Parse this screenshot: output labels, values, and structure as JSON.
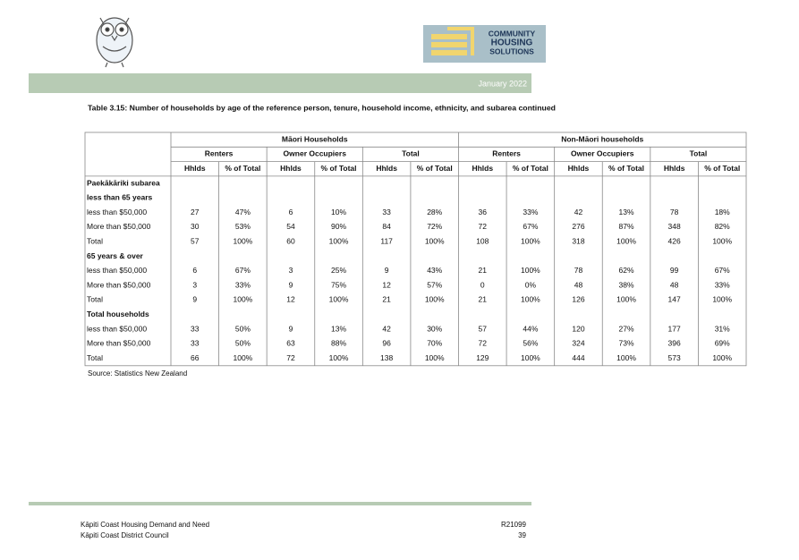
{
  "header": {
    "logo_text": [
      "COMMUNITY",
      "HOUSING",
      "SOLUTIONS"
    ],
    "date": "January 2022"
  },
  "table": {
    "title": "Table 3.15:  Number of households by age of the reference person, tenure, household income, ethnicity, and subarea continued",
    "group_headers": [
      "Māori Households",
      "Non-Māori households"
    ],
    "sub_headers": [
      "Renters",
      "Owner Occupiers",
      "Total",
      "Renters",
      "Owner Occupiers",
      "Total"
    ],
    "column_headers": [
      "Hhlds",
      "% of Total",
      "Hhlds",
      "% of Total",
      "Hhlds",
      "% of Total",
      "Hhlds",
      "% of Total",
      "Hhlds",
      "% of Total",
      "Hhlds",
      "% of Total"
    ],
    "rows": [
      [
        "Paekākāriki subarea"
      ],
      [
        "less than 65 years"
      ],
      [
        "less than $50,000",
        "27",
        "47%",
        "6",
        "10%",
        "33",
        "28%",
        "36",
        "33%",
        "42",
        "13%",
        "78",
        "18%"
      ],
      [
        "More than $50,000",
        "30",
        "53%",
        "54",
        "90%",
        "84",
        "72%",
        "72",
        "67%",
        "276",
        "87%",
        "348",
        "82%"
      ],
      [
        "Total",
        "57",
        "100%",
        "60",
        "100%",
        "117",
        "100%",
        "108",
        "100%",
        "318",
        "100%",
        "426",
        "100%"
      ],
      [
        "65 years & over"
      ],
      [
        "less than $50,000",
        "6",
        "67%",
        "3",
        "25%",
        "9",
        "43%",
        "21",
        "100%",
        "78",
        "62%",
        "99",
        "67%"
      ],
      [
        "More than $50,000",
        "3",
        "33%",
        "9",
        "75%",
        "12",
        "57%",
        "0",
        "0%",
        "48",
        "38%",
        "48",
        "33%"
      ],
      [
        "Total",
        "9",
        "100%",
        "12",
        "100%",
        "21",
        "100%",
        "21",
        "100%",
        "126",
        "100%",
        "147",
        "100%"
      ],
      [
        "Total households"
      ],
      [
        "less than $50,000",
        "33",
        "50%",
        "9",
        "13%",
        "42",
        "30%",
        "57",
        "44%",
        "120",
        "27%",
        "177",
        "31%"
      ],
      [
        "More than $50,000",
        "33",
        "50%",
        "63",
        "88%",
        "96",
        "70%",
        "72",
        "56%",
        "324",
        "73%",
        "396",
        "69%"
      ],
      [
        "Total",
        "66",
        "100%",
        "72",
        "100%",
        "138",
        "100%",
        "129",
        "100%",
        "444",
        "100%",
        "573",
        "100%"
      ]
    ],
    "source": "Source:  Statistics New Zealand"
  },
  "footer": {
    "left": [
      "Kāpiti Coast Housing Demand and Need",
      "Kāpiti Coast District Council"
    ],
    "right": [
      "R21099",
      "39"
    ]
  }
}
